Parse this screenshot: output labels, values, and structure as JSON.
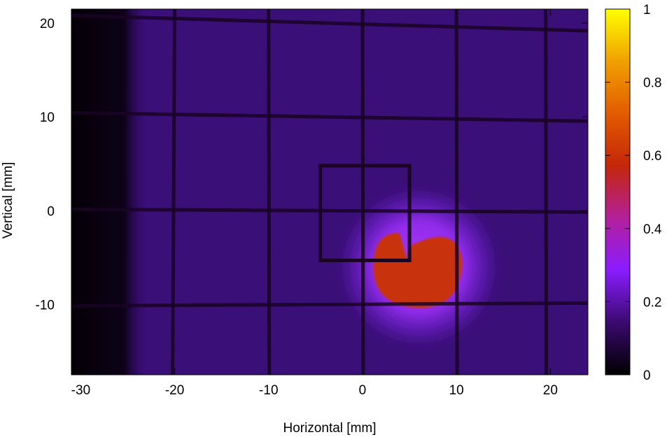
{
  "chart_data": {
    "type": "heatmap",
    "title": "",
    "xlabel": "Horizontal [mm]",
    "ylabel": "Vertical [mm]",
    "xlim": [
      -31,
      24
    ],
    "ylim": [
      -17.5,
      21.5
    ],
    "x_ticks": [
      -30,
      -20,
      -10,
      0,
      10,
      20
    ],
    "y_ticks": [
      -10,
      0,
      10,
      20
    ],
    "x_tick_labels": [
      "-30",
      "-20",
      "-10",
      "0",
      "10",
      "20"
    ],
    "y_tick_labels": [
      "-10",
      "0",
      "10",
      "20"
    ],
    "colorbar": {
      "range": [
        0,
        1
      ],
      "ticks": [
        0,
        0.2,
        0.4,
        0.6,
        0.8,
        1
      ],
      "tick_labels": [
        "0",
        "0.2",
        "0.4",
        "0.6",
        "0.8",
        "1"
      ],
      "colormap": "gnuplot-pm3d",
      "stops": [
        "#000000",
        "#3a0a6e",
        "#8a1cff",
        "#b3209a",
        "#c4260a",
        "#e25b00",
        "#f0a000",
        "#ffff00"
      ]
    },
    "background_level": 0.1,
    "left_dark_band": {
      "x_range": [
        -31,
        -24
      ],
      "level": 0.02
    },
    "beam_spot": {
      "center": [
        6,
        -6
      ],
      "radius_mm": 7,
      "core_level": 0.62,
      "halo_level": 0.3
    },
    "grid_wires": {
      "vertical_x": [
        -20,
        -10,
        0,
        10,
        19.5
      ],
      "horizontal_y": [
        20,
        10,
        0,
        -10
      ]
    },
    "frame_box": {
      "x_range": [
        -4.5,
        5
      ],
      "y_range": [
        -5.3,
        4.8
      ]
    },
    "grid": false,
    "legend": "colorbar-right"
  }
}
